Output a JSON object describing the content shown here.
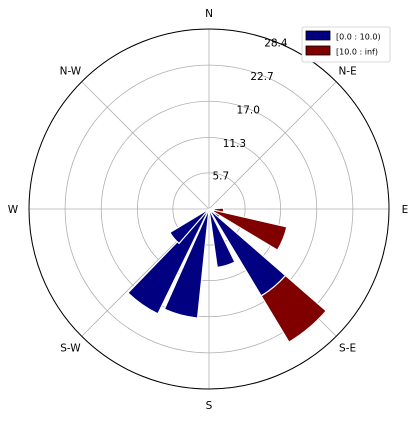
{
  "chart_data": {
    "type": "windrose",
    "directions": [
      "N",
      "N-E",
      "E",
      "S-E",
      "S",
      "S-W",
      "W",
      "N-W"
    ],
    "radial_ticks": [
      "5.7",
      "11.3",
      "17.0",
      "22.7",
      "28.4"
    ],
    "radial_tick_values": [
      5.7,
      11.3,
      17.0,
      22.7,
      28.4
    ],
    "rmax": 28.4,
    "grid": true,
    "legend_position": "top-right",
    "series": [
      {
        "name": "[0.0 : 10.0)",
        "color": "#000080",
        "bars": [
          {
            "angle_deg": 95,
            "value": 0.8
          },
          {
            "angle_deg": 112,
            "value": 0.8
          },
          {
            "angle_deg": 125,
            "value": 2.0
          },
          {
            "angle_deg": 140,
            "value": 16.0
          },
          {
            "angle_deg": 163,
            "value": 9.3
          },
          {
            "angle_deg": 195,
            "value": 17.3
          },
          {
            "angle_deg": 215,
            "value": 18.4
          },
          {
            "angle_deg": 230,
            "value": 7.2
          }
        ]
      },
      {
        "name": "[10.0 : inf)",
        "color": "#800000",
        "bars": [
          {
            "angle_deg": 95,
            "value": 1.5
          },
          {
            "angle_deg": 112,
            "value": 11.8
          },
          {
            "angle_deg": 140,
            "value": 8.5
          }
        ]
      }
    ]
  }
}
